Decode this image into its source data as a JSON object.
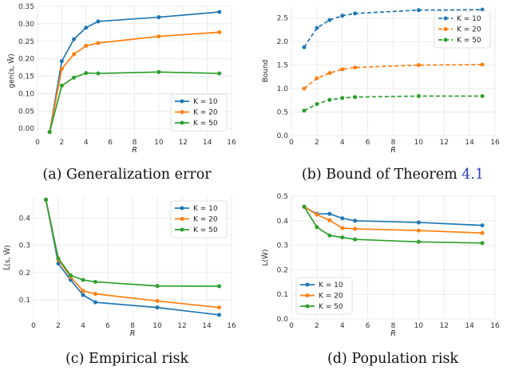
{
  "chart_data": [
    {
      "type": "line",
      "line_style": "solid",
      "caption": "(a) Generalization error",
      "xlabel": "R",
      "ylabel": "gen(s, W̄)",
      "xlim": [
        0,
        16
      ],
      "ylim": [
        -0.02,
        0.35
      ],
      "xticks": [
        "0",
        "2",
        "4",
        "6",
        "8",
        "10",
        "12",
        "14",
        "16"
      ],
      "yticks": [
        "0.00",
        "0.05",
        "0.10",
        "0.15",
        "0.20",
        "0.25",
        "0.30",
        "0.35"
      ],
      "grid": true,
      "legend_position": "lower-right",
      "series": [
        {
          "name": "K = 10",
          "color": "#1f77b4",
          "x": [
            1,
            2,
            3,
            4,
            5,
            10,
            15
          ],
          "y": [
            -0.01,
            0.193,
            0.256,
            0.289,
            0.307,
            0.319,
            0.334
          ]
        },
        {
          "name": "K = 20",
          "color": "#ff7f0e",
          "x": [
            1,
            2,
            3,
            4,
            5,
            10,
            15
          ],
          "y": [
            -0.01,
            0.171,
            0.213,
            0.237,
            0.245,
            0.264,
            0.276
          ]
        },
        {
          "name": "K = 50",
          "color": "#2ca02c",
          "x": [
            1,
            2,
            3,
            4,
            5,
            10,
            15
          ],
          "y": [
            -0.01,
            0.123,
            0.146,
            0.159,
            0.158,
            0.162,
            0.158
          ]
        }
      ]
    },
    {
      "type": "line",
      "line_style": "dashed",
      "caption_prefix": "(b) Bound of Theorem ",
      "caption_ref": "4.1",
      "xlabel": "R",
      "ylabel": "Bound",
      "xlim": [
        0,
        16
      ],
      "ylim": [
        0,
        2.75
      ],
      "xticks": [
        "0",
        "2",
        "4",
        "6",
        "8",
        "10",
        "12",
        "14",
        "16"
      ],
      "yticks": [
        "0.0",
        "0.5",
        "1.0",
        "1.5",
        "2.0",
        "2.5"
      ],
      "grid": true,
      "legend_position": "upper-right",
      "series": [
        {
          "name": "K = 10",
          "color": "#1f77b4",
          "x": [
            1,
            2,
            3,
            4,
            5,
            10,
            15
          ],
          "y": [
            1.88,
            2.29,
            2.46,
            2.55,
            2.6,
            2.67,
            2.68
          ]
        },
        {
          "name": "K = 20",
          "color": "#ff7f0e",
          "x": [
            1,
            2,
            3,
            4,
            5,
            10,
            15
          ],
          "y": [
            1.0,
            1.22,
            1.33,
            1.41,
            1.45,
            1.5,
            1.51
          ]
        },
        {
          "name": "K = 50",
          "color": "#2ca02c",
          "x": [
            1,
            2,
            3,
            4,
            5,
            10,
            15
          ],
          "y": [
            0.53,
            0.67,
            0.76,
            0.8,
            0.82,
            0.84,
            0.84
          ]
        }
      ]
    },
    {
      "type": "line",
      "line_style": "solid",
      "caption": "(c) Empirical risk",
      "xlabel": "R",
      "ylabel": "L̂(s, W̄)",
      "xlim": [
        0,
        16
      ],
      "ylim": [
        0.03,
        0.48
      ],
      "xticks": [
        "0",
        "2",
        "4",
        "6",
        "8",
        "10",
        "12",
        "14",
        "16"
      ],
      "yticks": [
        "0.1",
        "0.2",
        "0.3",
        "0.4"
      ],
      "grid": true,
      "legend_position": "upper-right",
      "series": [
        {
          "name": "K = 10",
          "color": "#1f77b4",
          "x": [
            1,
            2,
            3,
            4,
            5,
            10,
            15
          ],
          "y": [
            0.467,
            0.233,
            0.173,
            0.118,
            0.091,
            0.072,
            0.045
          ]
        },
        {
          "name": "K = 20",
          "color": "#ff7f0e",
          "x": [
            1,
            2,
            3,
            4,
            5,
            10,
            15
          ],
          "y": [
            0.467,
            0.247,
            0.184,
            0.133,
            0.122,
            0.096,
            0.072
          ]
        },
        {
          "name": "K = 50",
          "color": "#2ca02c",
          "x": [
            1,
            2,
            3,
            4,
            5,
            10,
            15
          ],
          "y": [
            0.467,
            0.252,
            0.19,
            0.173,
            0.166,
            0.151,
            0.15
          ]
        }
      ]
    },
    {
      "type": "line",
      "line_style": "solid",
      "caption": "(d) Population risk",
      "xlabel": "R",
      "ylabel": "L(W̄)",
      "xlim": [
        0,
        16
      ],
      "ylim": [
        0.0,
        0.5
      ],
      "xticks": [
        "0",
        "2",
        "4",
        "6",
        "8",
        "10",
        "12",
        "14",
        "16"
      ],
      "yticks": [
        "0.0",
        "0.1",
        "0.2",
        "0.3",
        "0.4",
        "0.5"
      ],
      "grid": true,
      "legend_position": "lower-left",
      "series": [
        {
          "name": "K = 10",
          "color": "#1f77b4",
          "x": [
            1,
            2,
            3,
            4,
            5,
            10,
            15
          ],
          "y": [
            0.457,
            0.428,
            0.428,
            0.41,
            0.4,
            0.393,
            0.381
          ]
        },
        {
          "name": "K = 20",
          "color": "#ff7f0e",
          "x": [
            1,
            2,
            3,
            4,
            5,
            10,
            15
          ],
          "y": [
            0.457,
            0.425,
            0.402,
            0.37,
            0.367,
            0.36,
            0.35
          ]
        },
        {
          "name": "K = 50",
          "color": "#2ca02c",
          "x": [
            1,
            2,
            3,
            4,
            5,
            10,
            15
          ],
          "y": [
            0.457,
            0.374,
            0.34,
            0.332,
            0.324,
            0.314,
            0.309
          ]
        }
      ]
    }
  ]
}
